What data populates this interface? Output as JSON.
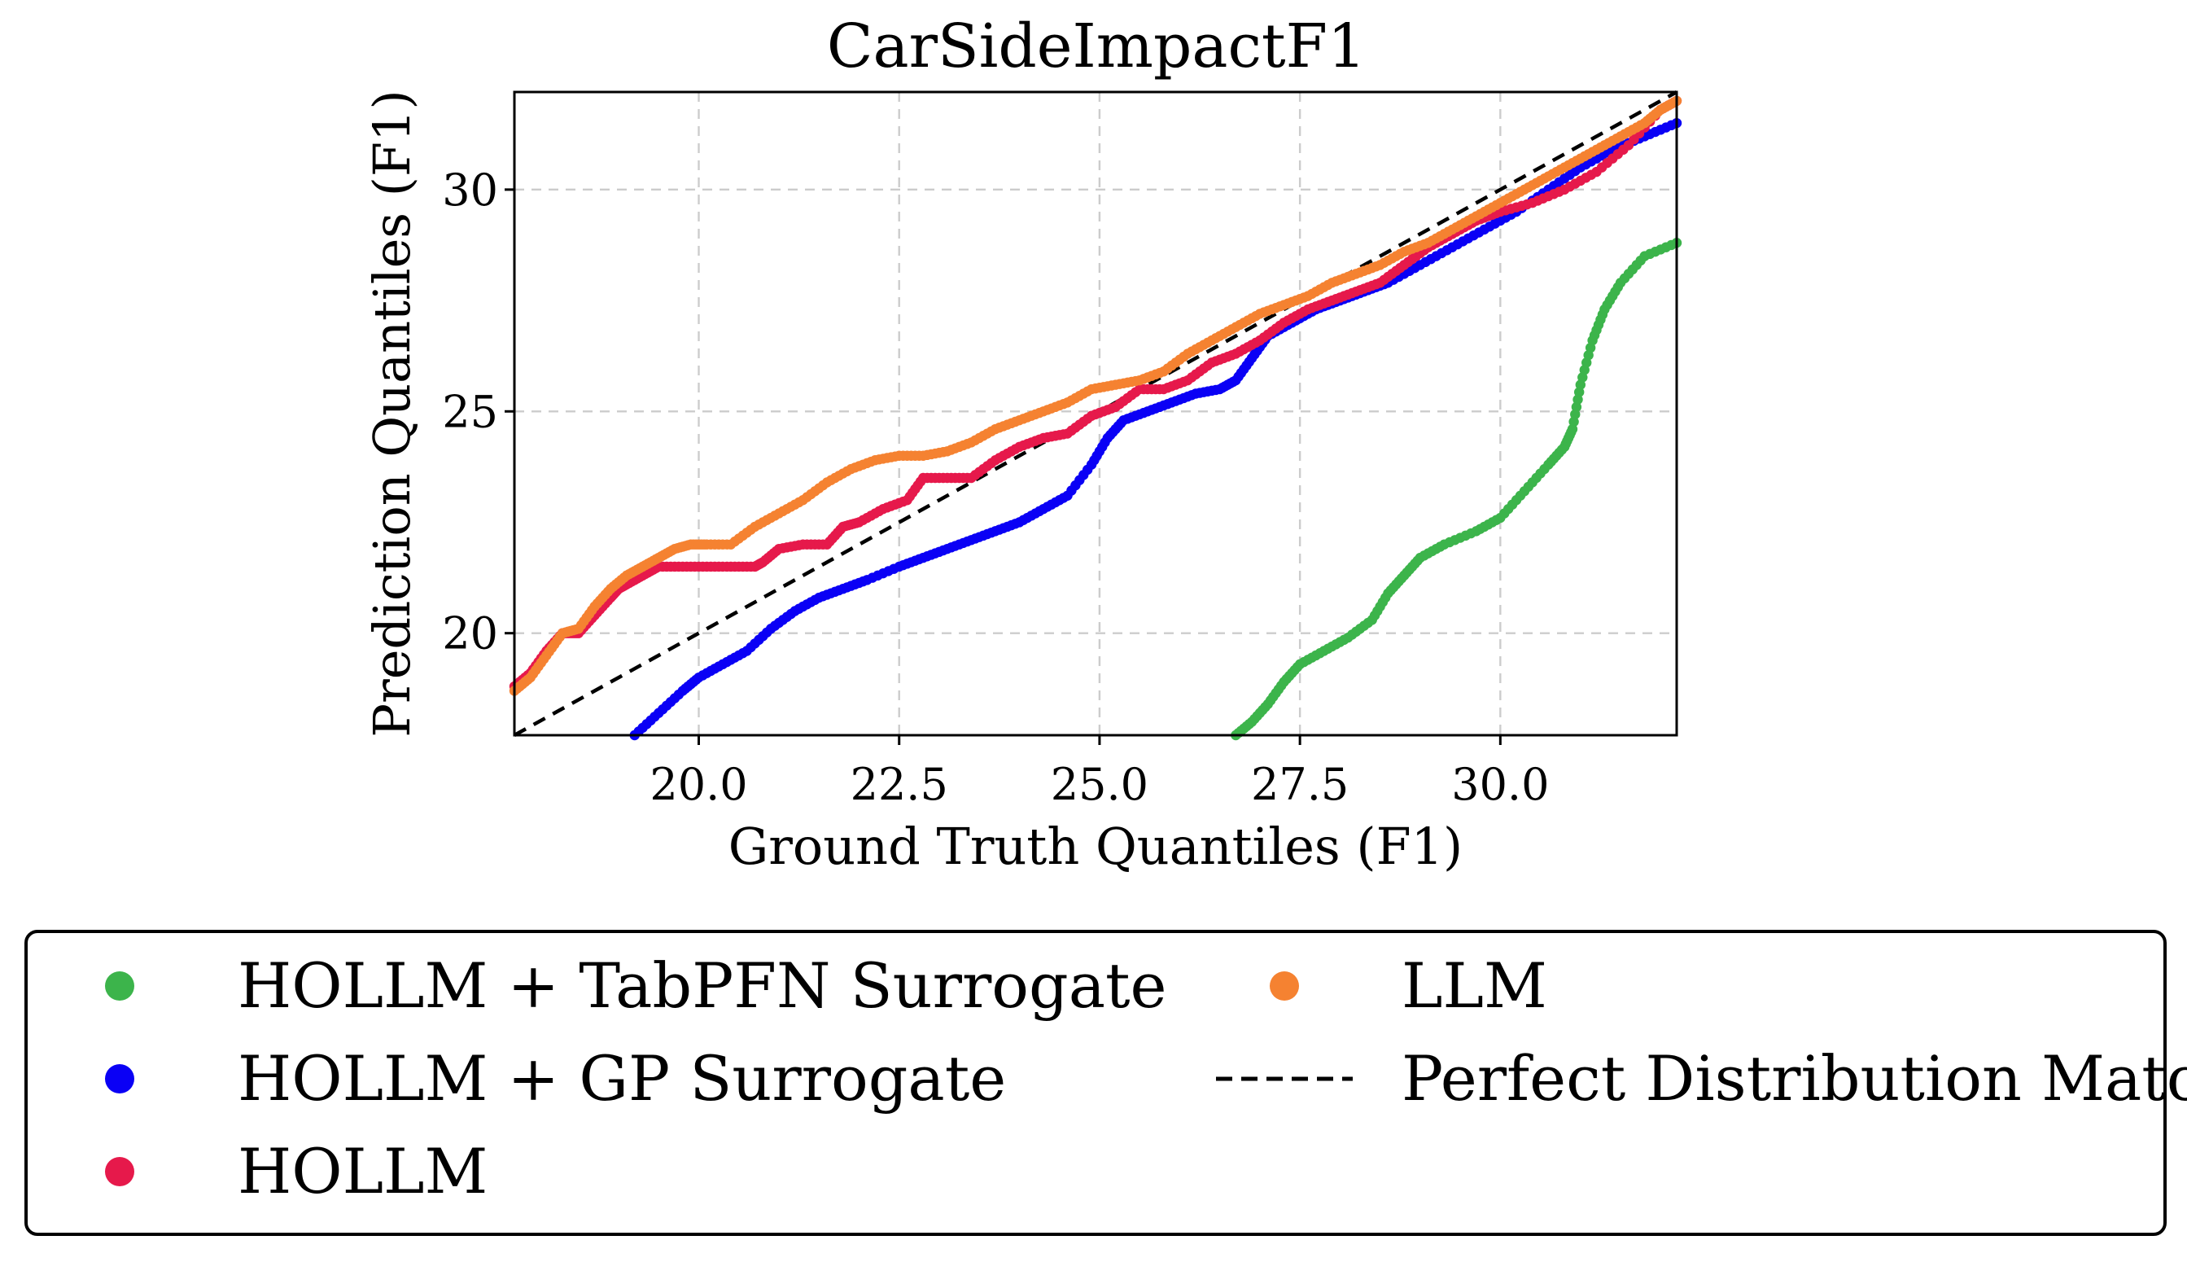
{
  "chart_data": {
    "type": "scatter",
    "title": "CarSideImpactF1",
    "xlabel": "Ground Truth Quantiles (F1)",
    "ylabel": "Prediction Quantiles (F1)",
    "xlim": [
      17.7,
      32.2
    ],
    "ylim": [
      17.7,
      32.2
    ],
    "xticks": [
      20.0,
      22.5,
      25.0,
      27.5,
      30.0
    ],
    "xtick_labels": [
      "20.0",
      "22.5",
      "25.0",
      "27.5",
      "30.0"
    ],
    "yticks": [
      20,
      25,
      30
    ],
    "ytick_labels": [
      "20",
      "25",
      "30"
    ],
    "grid": true,
    "legend_position": "below",
    "series": [
      {
        "name": "HOLLM + TabPFN Surrogate",
        "color": "#3cb44b",
        "marker": "point",
        "x": [
          26.7,
          26.9,
          27.1,
          27.3,
          27.5,
          27.8,
          28.1,
          28.4,
          28.6,
          28.8,
          29.0,
          29.3,
          29.7,
          30.0,
          30.3,
          30.6,
          30.8,
          30.9,
          31.0,
          31.15,
          31.3,
          31.5,
          31.8,
          32.2
        ],
        "y": [
          17.7,
          18.0,
          18.4,
          18.9,
          19.3,
          19.6,
          19.9,
          20.3,
          20.9,
          21.3,
          21.7,
          22.0,
          22.3,
          22.6,
          23.2,
          23.8,
          24.2,
          24.6,
          25.6,
          26.6,
          27.3,
          27.9,
          28.5,
          28.8
        ]
      },
      {
        "name": "HOLLM + GP Surrogate",
        "color": "#0a00f5",
        "marker": "point",
        "x": [
          19.2,
          19.5,
          19.8,
          20.0,
          20.3,
          20.6,
          20.9,
          21.2,
          21.5,
          21.8,
          22.1,
          22.5,
          22.8,
          23.1,
          23.4,
          23.7,
          24.0,
          24.3,
          24.6,
          24.9,
          25.1,
          25.3,
          25.6,
          25.9,
          26.2,
          26.5,
          26.7,
          26.9,
          27.1,
          27.4,
          27.7,
          28.0,
          28.3,
          28.6,
          29.0,
          29.4,
          29.8,
          30.2,
          30.6,
          31.0,
          31.4,
          31.8,
          32.2
        ],
        "y": [
          17.7,
          18.2,
          18.7,
          19.0,
          19.3,
          19.6,
          20.1,
          20.5,
          20.8,
          21.0,
          21.2,
          21.5,
          21.7,
          21.9,
          22.1,
          22.3,
          22.5,
          22.8,
          23.1,
          23.8,
          24.4,
          24.8,
          25.0,
          25.2,
          25.4,
          25.5,
          25.7,
          26.2,
          26.7,
          27.0,
          27.3,
          27.5,
          27.7,
          27.9,
          28.3,
          28.7,
          29.1,
          29.5,
          30.0,
          30.5,
          30.9,
          31.2,
          31.5
        ]
      },
      {
        "name": "HOLLM",
        "color": "#e6194b",
        "marker": "point",
        "x": [
          17.7,
          17.9,
          18.1,
          18.3,
          18.5,
          18.7,
          18.9,
          19.0,
          19.1,
          19.3,
          19.5,
          19.8,
          20.1,
          20.4,
          20.7,
          20.8,
          21.0,
          21.3,
          21.6,
          21.8,
          22.0,
          22.3,
          22.6,
          22.8,
          23.1,
          23.4,
          23.7,
          24.0,
          24.3,
          24.6,
          24.9,
          25.2,
          25.5,
          25.8,
          26.1,
          26.4,
          26.7,
          27.0,
          27.3,
          27.6,
          27.9,
          28.2,
          28.5,
          28.8,
          29.1,
          29.4,
          29.7,
          30.0,
          30.4,
          30.8,
          31.2,
          31.6,
          32.0,
          32.2
        ],
        "y": [
          18.8,
          19.1,
          19.6,
          20.0,
          20.0,
          20.4,
          20.8,
          21.0,
          21.1,
          21.3,
          21.5,
          21.5,
          21.5,
          21.5,
          21.5,
          21.6,
          21.9,
          22.0,
          22.0,
          22.4,
          22.5,
          22.8,
          23.0,
          23.5,
          23.5,
          23.5,
          23.9,
          24.2,
          24.4,
          24.5,
          24.9,
          25.1,
          25.5,
          25.5,
          25.7,
          26.1,
          26.3,
          26.6,
          27.0,
          27.3,
          27.5,
          27.7,
          27.9,
          28.3,
          28.7,
          29.0,
          29.3,
          29.5,
          29.7,
          30.0,
          30.4,
          31.0,
          31.8,
          32.0
        ]
      },
      {
        "name": "LLM",
        "color": "#f58231",
        "marker": "point",
        "x": [
          17.7,
          17.9,
          18.1,
          18.3,
          18.5,
          18.7,
          18.9,
          19.1,
          19.3,
          19.5,
          19.7,
          19.9,
          20.1,
          20.4,
          20.7,
          21.0,
          21.3,
          21.6,
          21.9,
          22.2,
          22.5,
          22.8,
          23.1,
          23.4,
          23.7,
          24.0,
          24.3,
          24.6,
          24.9,
          25.2,
          25.5,
          25.8,
          26.1,
          26.4,
          26.7,
          27.0,
          27.3,
          27.6,
          27.9,
          28.2,
          28.5,
          28.8,
          29.1,
          29.4,
          29.7,
          30.0,
          30.3,
          30.6,
          30.9,
          31.2,
          31.5,
          31.8,
          32.0,
          32.2
        ],
        "y": [
          18.7,
          19.0,
          19.5,
          20.0,
          20.1,
          20.6,
          21.0,
          21.3,
          21.5,
          21.7,
          21.9,
          22.0,
          22.0,
          22.0,
          22.4,
          22.7,
          23.0,
          23.4,
          23.7,
          23.9,
          24.0,
          24.0,
          24.1,
          24.3,
          24.6,
          24.8,
          25.0,
          25.2,
          25.5,
          25.6,
          25.7,
          25.9,
          26.3,
          26.6,
          26.9,
          27.2,
          27.4,
          27.6,
          27.9,
          28.1,
          28.3,
          28.6,
          28.8,
          29.1,
          29.4,
          29.7,
          30.0,
          30.3,
          30.6,
          30.9,
          31.2,
          31.5,
          31.8,
          32.0
        ]
      }
    ],
    "reference_line": {
      "name": "Perfect Distribution Match",
      "color": "#000000",
      "style": "dashed",
      "x": [
        17.7,
        32.2
      ],
      "y": [
        17.7,
        32.2
      ]
    }
  }
}
